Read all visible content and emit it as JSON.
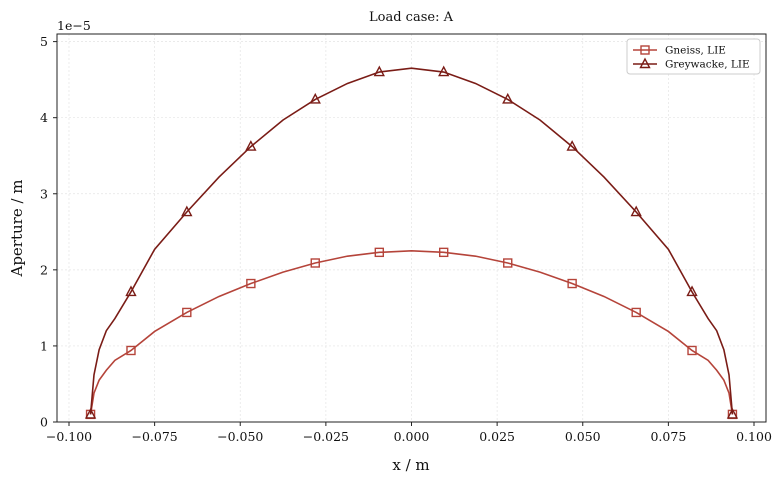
{
  "chart_data": {
    "type": "line",
    "title": "Load case: A",
    "xlabel": "x / m",
    "ylabel": "Aperture / m",
    "y_offset_label": "1e−5",
    "xlim": [
      -0.1,
      0.1
    ],
    "ylim": [
      0,
      5.1
    ],
    "x_ticks": [
      -0.1,
      -0.075,
      -0.05,
      -0.025,
      0.0,
      0.025,
      0.05,
      0.075,
      0.1
    ],
    "x_tick_labels": [
      "−0.100",
      "−0.075",
      "−0.050",
      "−0.025",
      "0.000",
      "0.025",
      "0.050",
      "0.075",
      "0.100"
    ],
    "y_ticks": [
      0,
      1,
      2,
      3,
      4,
      5
    ],
    "y_tick_labels": [
      "0",
      "1",
      "2",
      "3",
      "4",
      "5"
    ],
    "grid": true,
    "legend_position": "top-right",
    "x": [
      -0.0937,
      -0.0927,
      -0.0912,
      -0.0891,
      -0.0866,
      -0.0819,
      -0.075,
      -0.0656,
      -0.0562,
      -0.0469,
      -0.0375,
      -0.0281,
      -0.0187,
      -0.0094,
      0.0,
      0.0094,
      0.0187,
      0.0281,
      0.0375,
      0.0469,
      0.0562,
      0.0656,
      0.075,
      0.0819,
      0.0866,
      0.0891,
      0.0912,
      0.0927,
      0.0937
    ],
    "series": [
      {
        "name": "Gneiss, LIE",
        "marker": "square",
        "color": "#b5443a",
        "values": [
          0.1,
          0.38,
          0.55,
          0.68,
          0.81,
          0.94,
          1.19,
          1.44,
          1.65,
          1.82,
          1.97,
          2.09,
          2.18,
          2.23,
          2.25,
          2.23,
          2.18,
          2.09,
          1.97,
          1.82,
          1.65,
          1.44,
          1.19,
          0.94,
          0.81,
          0.68,
          0.55,
          0.38,
          0.1
        ],
        "marker_x": [
          -0.0937,
          -0.0819,
          -0.0656,
          -0.0469,
          -0.0281,
          -0.0094,
          0.0094,
          0.0281,
          0.0469,
          0.0656,
          0.0819,
          0.0937
        ],
        "marker_values": [
          0.1,
          0.94,
          1.44,
          1.82,
          2.09,
          2.23,
          2.23,
          2.09,
          1.82,
          1.44,
          0.94,
          0.1
        ]
      },
      {
        "name": "Greywacke, LIE",
        "marker": "triangle",
        "color": "#7a1c16",
        "values": [
          0.1,
          0.62,
          0.95,
          1.2,
          1.36,
          1.71,
          2.27,
          2.76,
          3.22,
          3.62,
          3.97,
          4.24,
          4.45,
          4.6,
          4.65,
          4.6,
          4.45,
          4.24,
          3.97,
          3.62,
          3.22,
          2.76,
          2.27,
          1.71,
          1.36,
          1.2,
          0.95,
          0.62,
          0.1
        ],
        "marker_x": [
          -0.0937,
          -0.0819,
          -0.0656,
          -0.0469,
          -0.0281,
          -0.0094,
          0.0094,
          0.0281,
          0.0469,
          0.0656,
          0.0819,
          0.0937
        ],
        "marker_values": [
          0.1,
          1.71,
          2.76,
          3.62,
          4.24,
          4.6,
          4.6,
          4.24,
          3.62,
          2.76,
          1.71,
          0.1
        ]
      }
    ]
  }
}
